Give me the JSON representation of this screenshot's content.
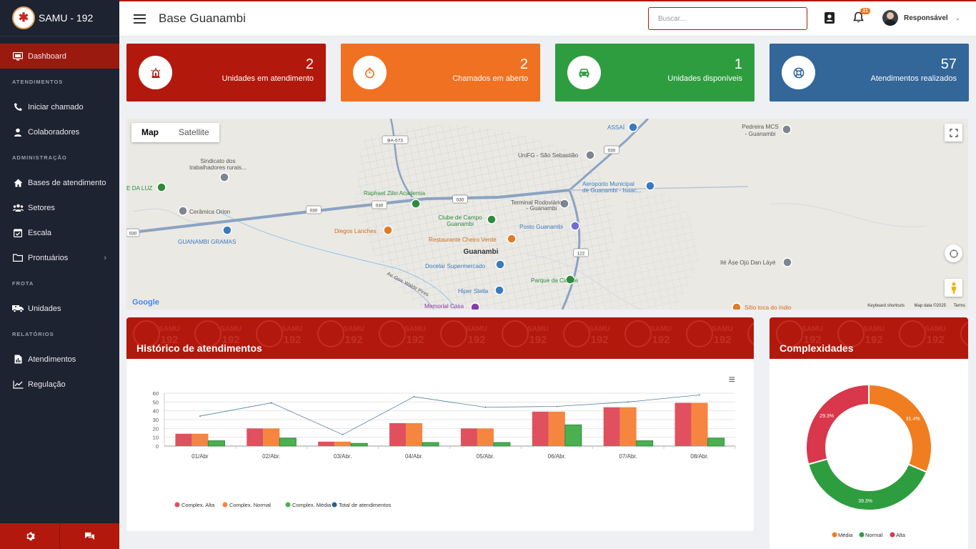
{
  "app": {
    "brand_name": "SAMU - 192",
    "page_title": "Base Guanambi"
  },
  "sidebar": {
    "items": [
      {
        "type": "item",
        "label": "Dashboard",
        "icon": "monitor-icon",
        "active": true
      },
      {
        "type": "section",
        "label": "ATENDIMENTOS"
      },
      {
        "type": "item",
        "label": "Iniciar chamado",
        "icon": "phone-icon"
      },
      {
        "type": "item",
        "label": "Colaboradores",
        "icon": "user-icon"
      },
      {
        "type": "section",
        "label": "ADMINISTRAÇÃO"
      },
      {
        "type": "item",
        "label": "Bases de atendimento",
        "icon": "home-icon"
      },
      {
        "type": "item",
        "label": "Setores",
        "icon": "users-icon"
      },
      {
        "type": "item",
        "label": "Escala",
        "icon": "calendar-check-icon"
      },
      {
        "type": "item",
        "label": "Prontuários",
        "icon": "folder-icon",
        "caret": "›"
      },
      {
        "type": "section",
        "label": "FROTA"
      },
      {
        "type": "item",
        "label": "Unidades",
        "icon": "ambulance-icon"
      },
      {
        "type": "section",
        "label": "RELATÓRIOS"
      },
      {
        "type": "item",
        "label": "Atendimentos",
        "icon": "file-chart-icon"
      },
      {
        "type": "item",
        "label": "Regulação",
        "icon": "line-chart-icon"
      }
    ]
  },
  "header": {
    "search_placeholder": "Buscar...",
    "notification_count": "21",
    "user_name": "Responsável",
    "user_caret": "⌄"
  },
  "stats": [
    {
      "value": "2",
      "label": "Unidades em atendimento",
      "color": "#b3180d",
      "icon": "siren-icon"
    },
    {
      "value": "2",
      "label": "Chamados em aberto",
      "color": "#f07121",
      "icon": "stopwatch-icon"
    },
    {
      "value": "1",
      "label": "Unidades disponíveis",
      "color": "#2e9d3f",
      "icon": "car-icon"
    },
    {
      "value": "57",
      "label": "Atendimentos realizados",
      "color": "#336699",
      "icon": "lifebuoy-icon"
    }
  ],
  "map": {
    "tabs": [
      "Map",
      "Satellite"
    ],
    "labels": [
      "Sindicato dos",
      "trabalhadores rurais...",
      "E DA LUZ",
      "Cerâmica Orion",
      "GUANAMBI GRAMAS",
      "Raphael Zilio Academia",
      "Clube de Campo",
      "Guanambi",
      "Diegos Lanches",
      "Restaurante Cheiro Verde",
      "Guanambi",
      "Docelar Supermercado",
      "Parque da Cidade",
      "Hiper Stella",
      "Memorial Casa",
      "Terminal Rodoviário",
      "- Guanambi",
      "Posto Guanambi",
      "UniFG - São Sebastião",
      "ASSAÍ",
      "Aeroporto Municipal",
      "de Guanambi - Isaac...",
      "Pedreira MCS",
      "- Guanambi",
      "Ilé Àṣẹ Ojú Dan Láyé",
      "Sítio toca do índio",
      "Av. Gov. Waldir Pires"
    ],
    "road_badges": [
      "BA-573",
      "030",
      "030",
      "030",
      "030",
      "030",
      "122"
    ],
    "google": "Google",
    "footer": [
      "Keyboard shortcuts",
      "Map data ©2025",
      "Terms"
    ]
  },
  "historico": {
    "title": "Histórico de atendimentos",
    "menu_icon": "≡",
    "header_pattern": [
      "SAMU",
      "192"
    ]
  },
  "complexidades": {
    "title": "Complexidades"
  },
  "chart_data": [
    {
      "type": "bar",
      "categories": [
        "01/Abr",
        "02/Abr.",
        "03/Abr.",
        "04/Abr.",
        "05/Abr.",
        "06/Abr.",
        "07/Abr.",
        "08/Abr."
      ],
      "ylim": [
        0,
        60
      ],
      "yticks": [
        0,
        10,
        20,
        30,
        40,
        50,
        60
      ],
      "series": [
        {
          "name": "Complex. Alta",
          "type": "bar",
          "color": "#e0505e",
          "values": [
            14,
            20,
            5,
            26,
            20,
            39,
            44,
            49
          ]
        },
        {
          "name": "Complex. Normal",
          "type": "bar",
          "color": "#f5853f",
          "values": [
            14,
            20,
            5,
            26,
            20,
            39,
            44,
            49
          ]
        },
        {
          "name": "Complex. Média",
          "type": "bar",
          "color": "#4caf50",
          "values": [
            6,
            9,
            3,
            4,
            4,
            24,
            6,
            9
          ]
        },
        {
          "name": "Total de atendimentos",
          "type": "line",
          "color": "#2f5f88",
          "values": [
            34,
            49,
            13,
            56,
            44,
            45,
            50,
            58
          ]
        }
      ]
    },
    {
      "type": "pie",
      "series": [
        {
          "name": "Média",
          "value": 31.4,
          "label": "31.4%",
          "color": "#f07d1f"
        },
        {
          "name": "Normal",
          "value": 39.3,
          "label": "39.3%",
          "color": "#2e9d3f"
        },
        {
          "name": "Alta",
          "value": 29.3,
          "label": "29.3%",
          "color": "#d9374b"
        }
      ]
    }
  ]
}
